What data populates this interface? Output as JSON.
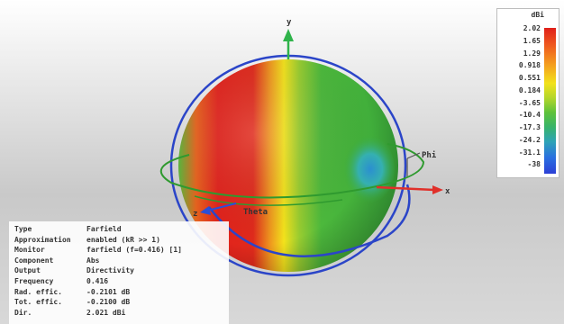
{
  "legend": {
    "unit": "dBi",
    "ticks": [
      "2.02",
      "1.65",
      "1.29",
      "0.918",
      "0.551",
      "0.184",
      "-3.65",
      "-10.4",
      "-17.3",
      "-24.2",
      "-31.1",
      "-38"
    ]
  },
  "axes": {
    "y_label": "y",
    "x_label": "x",
    "z_label": "z",
    "theta_label": "Theta",
    "phi_label": "Phi"
  },
  "info": {
    "rows": [
      {
        "key": "Type",
        "value": "Farfield"
      },
      {
        "key": "Approximation",
        "value": "enabled (kR >> 1)"
      },
      {
        "key": "Monitor",
        "value": "farfield (f=0.416) [1]"
      },
      {
        "key": "Component",
        "value": "Abs"
      },
      {
        "key": "Output",
        "value": "Directivity"
      },
      {
        "key": "Frequency",
        "value": "0.416"
      },
      {
        "key": "Rad. effic.",
        "value": "-0.2101 dB"
      },
      {
        "key": "Tot. effic.",
        "value": "-0.2100 dB"
      },
      {
        "key": "Dir.",
        "value": "2.021 dBi"
      }
    ]
  },
  "colors": {
    "axis_green": "#2fb34a",
    "axis_red": "#e0302a",
    "axis_blue": "#2a4fd8",
    "ring_blue": "#2b45c8",
    "ring_green": "#2f9a2f"
  }
}
